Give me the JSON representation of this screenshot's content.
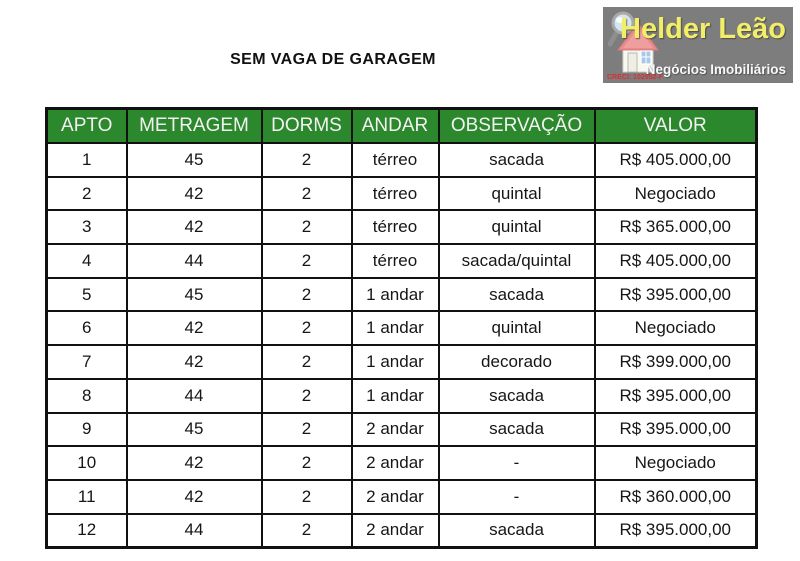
{
  "title": "SEM VAGA DE GARAGEM",
  "logo": {
    "name": "Helder Leão",
    "tagline": "Negócios Imobiliários",
    "creci": "CRECI: 102952-F",
    "icon": "house-with-magnifier",
    "colors": {
      "background_gray": "#7d7d7d",
      "name_yellow": "#f2ee68",
      "tagline_white": "#f8f8f8",
      "creci_red": "#d93030",
      "roof_red": "#e98b8b",
      "window_blue": "#a8c8e8"
    }
  },
  "table": {
    "headers": [
      "APTO",
      "METRAGEM",
      "DORMS",
      "ANDAR",
      "OBSERVAÇÃO",
      "VALOR"
    ],
    "rows": [
      [
        "1",
        "45",
        "2",
        "térreo",
        "sacada",
        "R$ 405.000,00"
      ],
      [
        "2",
        "42",
        "2",
        "térreo",
        "quintal",
        "Negociado"
      ],
      [
        "3",
        "42",
        "2",
        "térreo",
        "quintal",
        "R$ 365.000,00"
      ],
      [
        "4",
        "44",
        "2",
        "térreo",
        "sacada/quintal",
        "R$ 405.000,00"
      ],
      [
        "5",
        "45",
        "2",
        "1 andar",
        "sacada",
        "R$ 395.000,00"
      ],
      [
        "6",
        "42",
        "2",
        "1 andar",
        "quintal",
        "Negociado"
      ],
      [
        "7",
        "42",
        "2",
        "1 andar",
        "decorado",
        "R$ 399.000,00"
      ],
      [
        "8",
        "44",
        "2",
        "1 andar",
        "sacada",
        "R$ 395.000,00"
      ],
      [
        "9",
        "45",
        "2",
        "2 andar",
        "sacada",
        "R$ 395.000,00"
      ],
      [
        "10",
        "42",
        "2",
        "2 andar",
        "-",
        "Negociado"
      ],
      [
        "11",
        "42",
        "2",
        "2 andar",
        "-",
        "R$ 360.000,00"
      ],
      [
        "12",
        "44",
        "2",
        "2 andar",
        "sacada",
        "R$ 395.000,00"
      ]
    ],
    "colors": {
      "header_green": "#2c882c",
      "header_text": "#f2f2f2",
      "border": "#111111"
    }
  }
}
